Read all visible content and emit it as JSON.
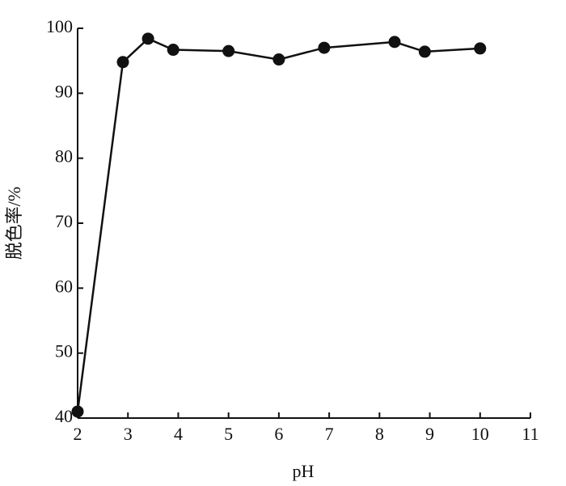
{
  "chart_data": {
    "type": "line",
    "x_label": "pH",
    "y_label": "脱色率/%",
    "x": [
      2.0,
      2.9,
      3.4,
      3.9,
      5.0,
      6.0,
      6.9,
      8.3,
      8.9,
      10.0
    ],
    "series": [
      {
        "color": "#111111",
        "values": [
          41.0,
          94.8,
          98.4,
          96.7,
          96.5,
          95.2,
          97.0,
          97.9,
          96.4,
          96.9
        ]
      }
    ],
    "xlim": [
      2,
      11
    ],
    "xticks": [
      2,
      3,
      4,
      5,
      6,
      7,
      8,
      9,
      10,
      11
    ],
    "ylim": [
      40,
      100
    ],
    "yticks": [
      40,
      50,
      60,
      70,
      80,
      90,
      100
    ]
  }
}
